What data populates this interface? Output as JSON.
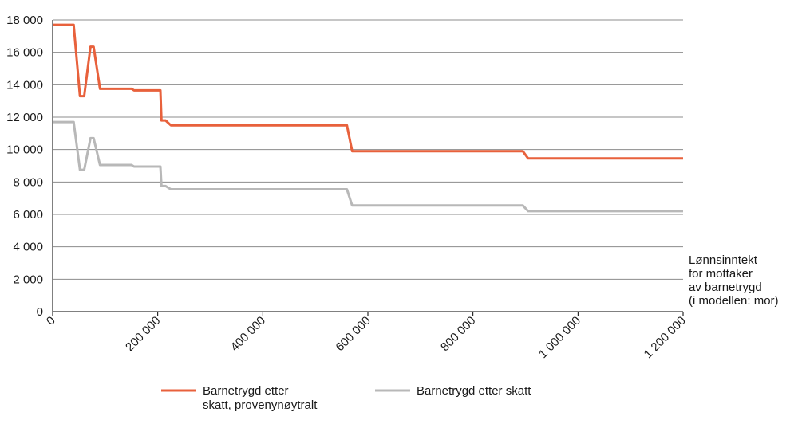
{
  "chart_data": {
    "type": "line",
    "title": "",
    "xlabel_lines": [
      "Lønnsinntekt",
      "for mottaker",
      "av barnetrygd",
      "(i modellen: mor)"
    ],
    "ylabel": "",
    "xlim": [
      0,
      1200000
    ],
    "ylim": [
      0,
      18000
    ],
    "x_ticks": [
      0,
      200000,
      400000,
      600000,
      800000,
      1000000,
      1200000
    ],
    "x_tick_labels": [
      "0",
      "200 000",
      "400 000",
      "600 000",
      "800 000",
      "1 000 000",
      "1 200 000"
    ],
    "y_ticks": [
      0,
      2000,
      4000,
      6000,
      8000,
      10000,
      12000,
      14000,
      16000,
      18000
    ],
    "y_tick_labels": [
      "0",
      "2 000",
      "4 000",
      "6 000",
      "8 000",
      "10 000",
      "12 000",
      "14 000",
      "16 000",
      "18 000"
    ],
    "grid": "horizontal",
    "legend_position": "bottom",
    "series": [
      {
        "name_lines": [
          "Barnetrygd etter",
          "skatt, provenynøytralt"
        ],
        "color": "#e8613c",
        "x": [
          0,
          40000,
          52000,
          60000,
          72000,
          78000,
          90000,
          150000,
          155000,
          205000,
          207000,
          215000,
          225000,
          560000,
          570000,
          895000,
          905000,
          1200000
        ],
        "y": [
          17700,
          17700,
          13300,
          13300,
          16350,
          16350,
          13750,
          13750,
          13650,
          13650,
          11800,
          11800,
          11500,
          11500,
          9900,
          9900,
          9450,
          9450
        ]
      },
      {
        "name_lines": [
          "Barnetrygd etter skatt"
        ],
        "color": "#b8b8b8",
        "x": [
          0,
          40000,
          52000,
          60000,
          72000,
          78000,
          90000,
          150000,
          155000,
          205000,
          207000,
          215000,
          225000,
          560000,
          570000,
          895000,
          905000,
          1200000
        ],
        "y": [
          11700,
          11700,
          8750,
          8750,
          10700,
          10700,
          9050,
          9050,
          8950,
          8950,
          7750,
          7750,
          7550,
          7550,
          6550,
          6550,
          6200,
          6200
        ]
      }
    ]
  }
}
